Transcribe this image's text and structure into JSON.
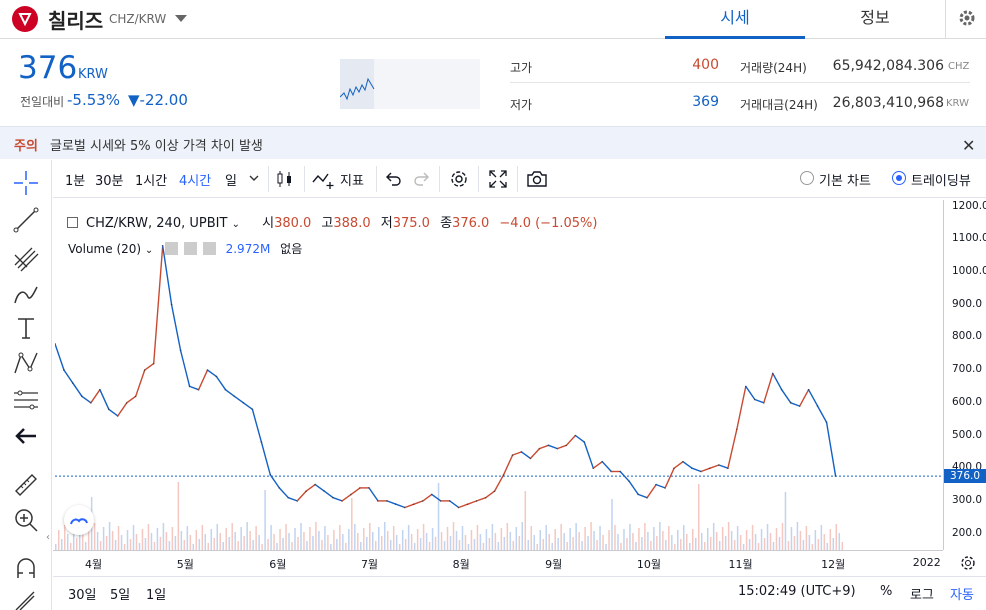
{
  "header": {
    "coin_name": "칠리즈",
    "pair": "CHZ/KRW",
    "tabs": [
      "시세",
      "정보"
    ]
  },
  "price": {
    "value": "376",
    "unit": "KRW",
    "change_label": "전일대비",
    "change_pct": "-5.53%",
    "change_abs": "▼-22.00"
  },
  "stats": {
    "high_label": "고가",
    "high_value": "400",
    "low_label": "저가",
    "low_value": "369",
    "volume_label": "거래량(24H)",
    "volume_value": "65,942,084.306",
    "volume_unit": "CHZ",
    "amount_label": "거래대금(24H)",
    "amount_value": "26,803,410,968",
    "amount_unit": "KRW"
  },
  "warning": {
    "tag": "주의",
    "text": "글로벌 시세와 5% 이상 가격 차이 발생"
  },
  "chart_toolbar": {
    "intervals": [
      "1분",
      "30분",
      "1시간",
      "4시간",
      "일"
    ],
    "indicators_label": "지표",
    "basic_chart_label": "기본 차트",
    "tradingview_label": "트레이딩뷰"
  },
  "legend": {
    "symbol": "CHZ/KRW, 240, UPBIT",
    "open_label": "시",
    "open": "380.0",
    "high_label": "고",
    "high": "388.0",
    "low_label": "저",
    "low": "375.0",
    "close_label": "종",
    "close": "376.0",
    "change": "−4.0 (−1.05%)",
    "volume_label": "Volume (20)",
    "volume_value": "2.972M",
    "volume_extra": "없음"
  },
  "bottom_bar": {
    "ranges": [
      "30일",
      "5일",
      "1일"
    ],
    "clock": "15:02:49 (UTC+9)",
    "percent": "%",
    "log": "로그",
    "auto": "자동"
  },
  "colors": {
    "accent": "#1261c4",
    "up": "#c84a31",
    "down": "#1261c4",
    "warning_bg": "#eef2fa"
  },
  "chart_data": {
    "type": "line",
    "current_price_label": "376.0",
    "ylim": [
      150,
      1220
    ],
    "yticks": [
      "1200.0",
      "1100.0",
      "1000.0",
      "900.0",
      "800.0",
      "700.0",
      "600.0",
      "500.0",
      "400.0",
      "300.0",
      "200.0"
    ],
    "ytick_values": [
      1200,
      1100,
      1000,
      900,
      800,
      700,
      600,
      500,
      400,
      300,
      200
    ],
    "x_ticks": [
      "4월",
      "5월",
      "6월",
      "7월",
      "8월",
      "9월",
      "10월",
      "11월",
      "12월",
      "2022"
    ],
    "x_tick_pos": [
      0.045,
      0.148,
      0.252,
      0.355,
      0.458,
      0.562,
      0.665,
      0.768,
      0.872,
      0.975
    ],
    "series": [
      {
        "values": [
          780,
          700,
          660,
          620,
          600,
          640,
          580,
          560,
          600,
          620,
          700,
          720,
          1080,
          900,
          760,
          650,
          640,
          700,
          680,
          640,
          620,
          600,
          580,
          480,
          380,
          340,
          310,
          300,
          330,
          350,
          330,
          310,
          300,
          320,
          340,
          340,
          300,
          300,
          290,
          280,
          290,
          300,
          320,
          300,
          300,
          280,
          290,
          300,
          310,
          330,
          380,
          440,
          450,
          430,
          460,
          470,
          460,
          470,
          500,
          480,
          400,
          420,
          390,
          390,
          360,
          320,
          310,
          350,
          340,
          400,
          420,
          400,
          390,
          400,
          410,
          400,
          520,
          650,
          610,
          600,
          690,
          640,
          600,
          590,
          640,
          590,
          540,
          376
        ]
      }
    ]
  }
}
